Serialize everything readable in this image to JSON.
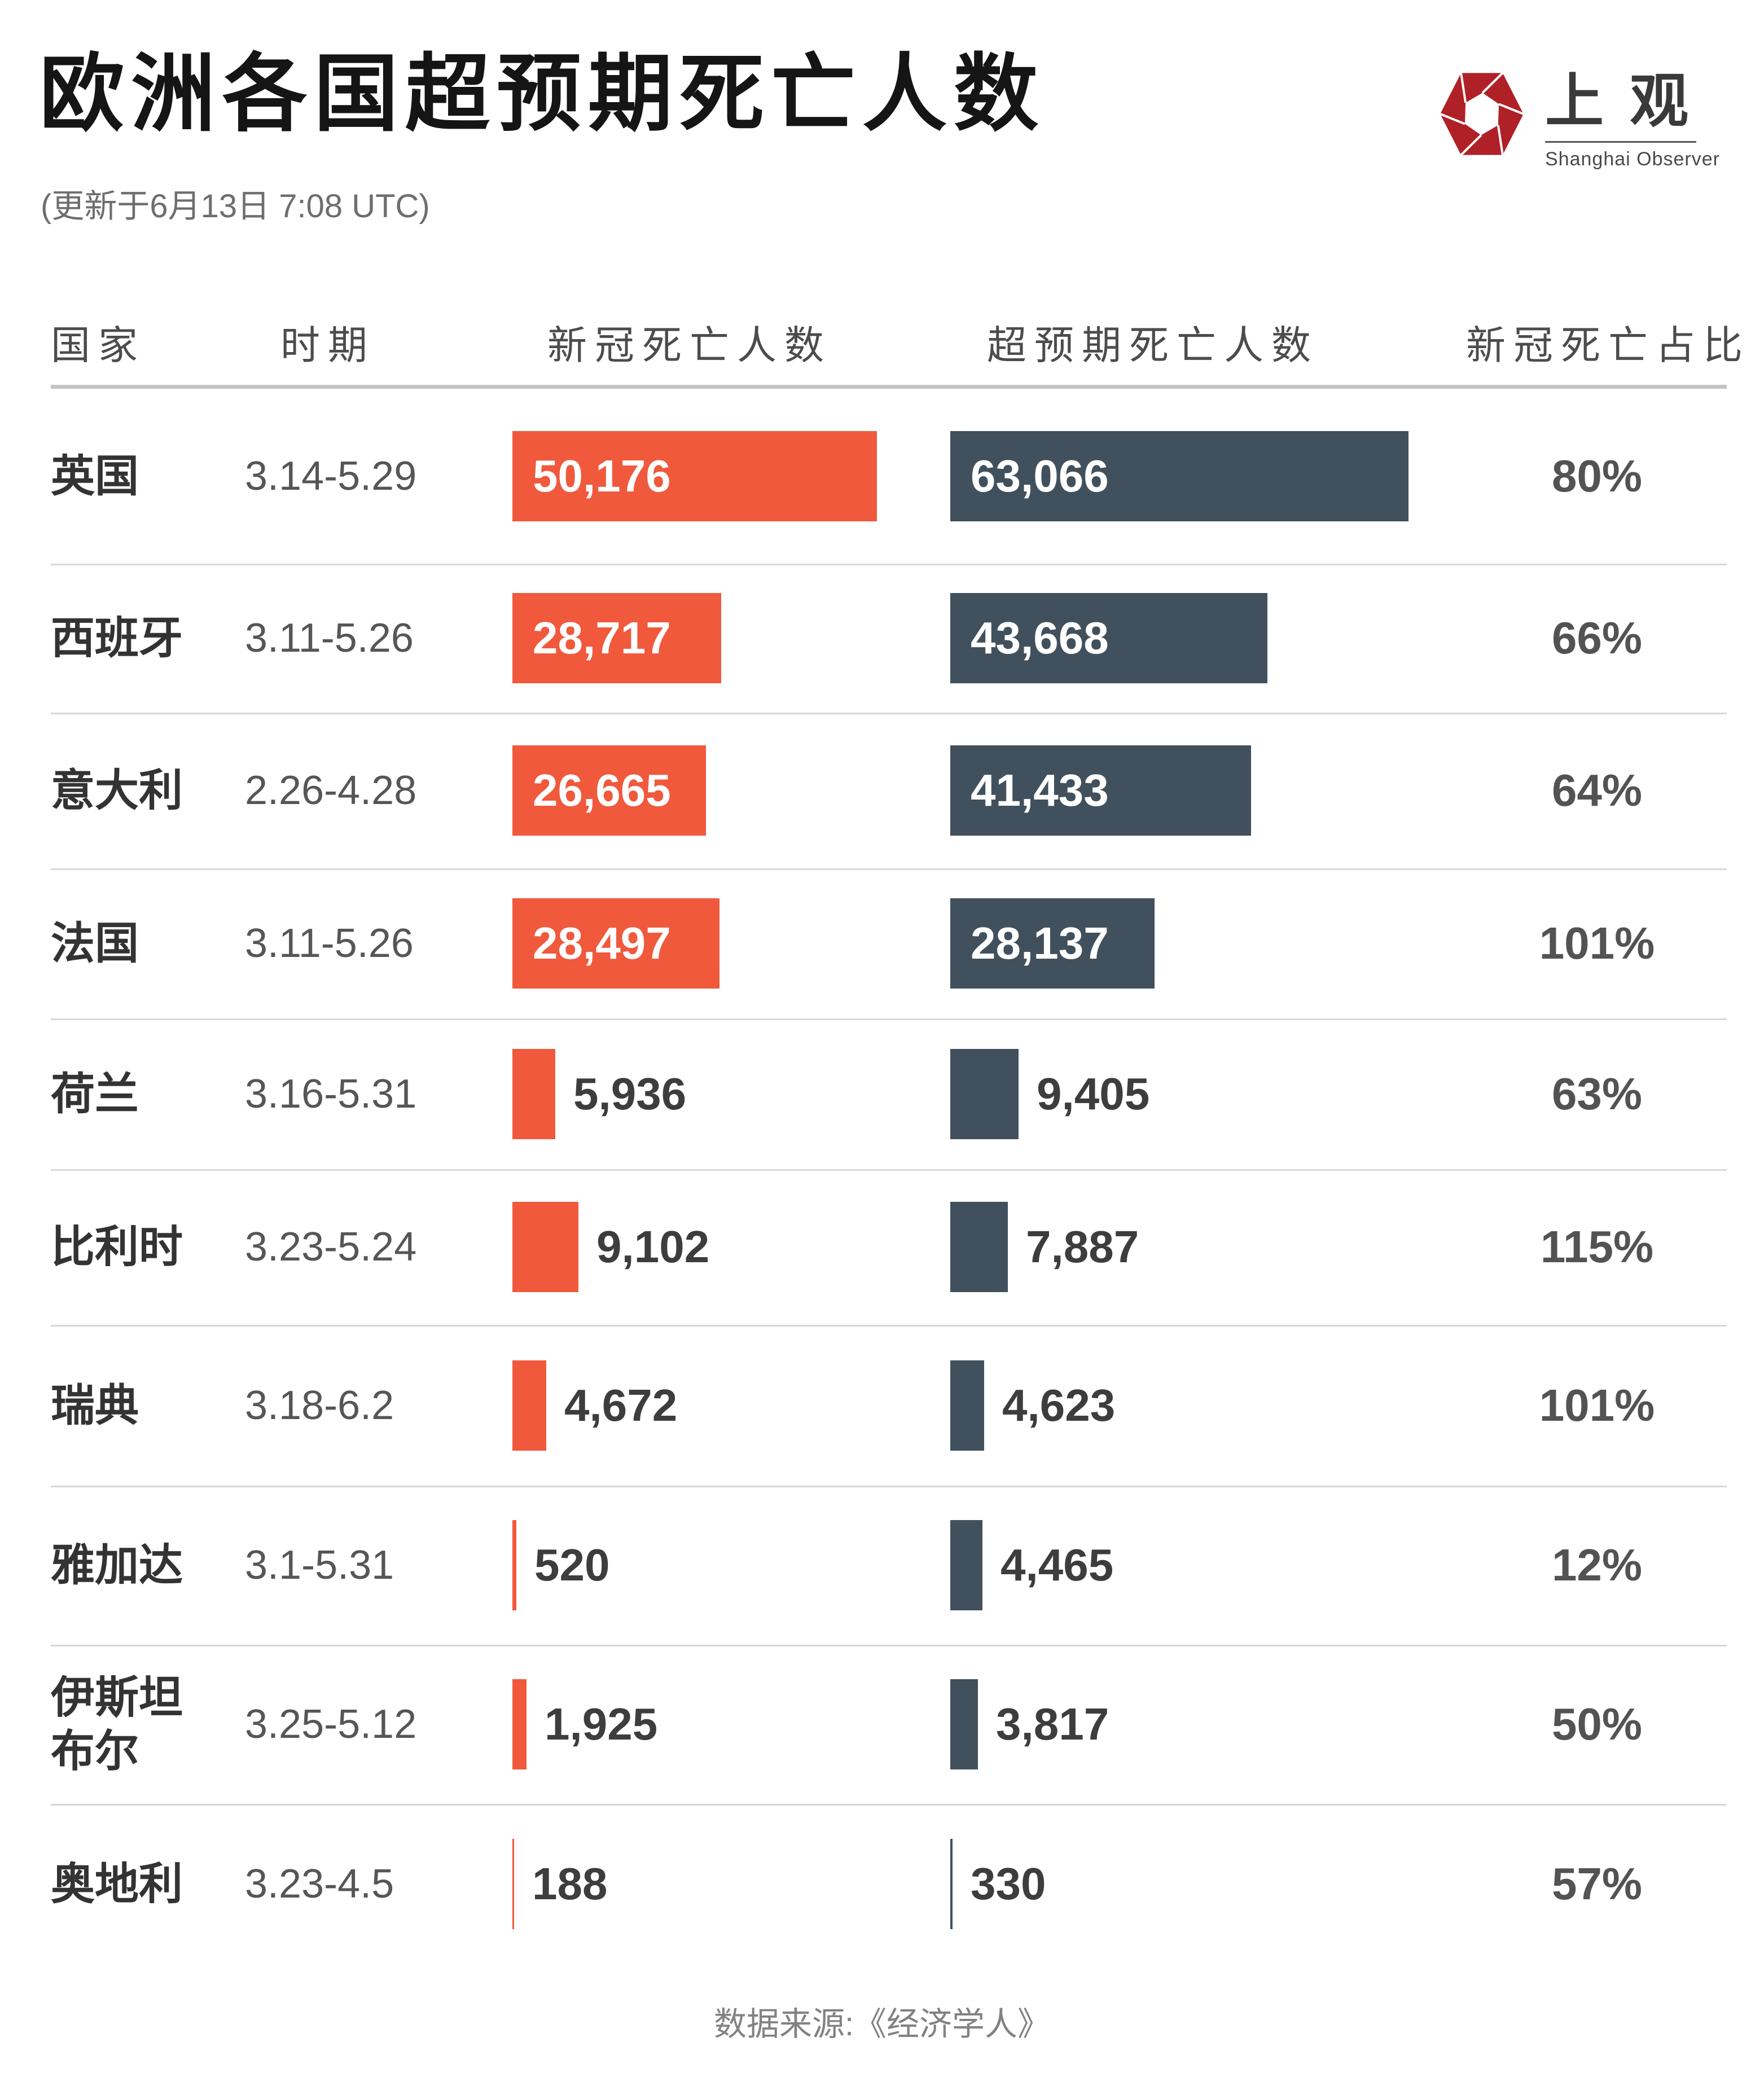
{
  "logo": {
    "cn": "上观",
    "en": "Shanghai Observer",
    "icon": "aperture-hexagon-icon",
    "color": "#B02127"
  },
  "chart_data": {
    "type": "bar",
    "orientation": "horizontal",
    "title": "欧洲各国超预期死亡人数",
    "updated": "(更新于6月13日 7:08 UTC)",
    "source": "数据来源:《经济学人》",
    "columns": [
      "国家",
      "时期",
      "新冠死亡人数",
      "超预期死亡人数",
      "新冠死亡占比"
    ],
    "legend_position": "none",
    "grid": false,
    "max_value": 63066,
    "colors": {
      "covid": "#F0593C",
      "excess": "#41505D"
    },
    "rows": [
      {
        "country": "英国",
        "period": "3.14-5.29",
        "covid": 50176,
        "covid_label": "50,176",
        "excess": 63066,
        "excess_label": "63,066",
        "ratio": "80%"
      },
      {
        "country": "西班牙",
        "period": "3.11-5.26",
        "covid": 28717,
        "covid_label": "28,717",
        "excess": 43668,
        "excess_label": "43,668",
        "ratio": "66%"
      },
      {
        "country": "意大利",
        "period": "2.26-4.28",
        "covid": 26665,
        "covid_label": "26,665",
        "excess": 41433,
        "excess_label": "41,433",
        "ratio": "64%"
      },
      {
        "country": "法国",
        "period": "3.11-5.26",
        "covid": 28497,
        "covid_label": "28,497",
        "excess": 28137,
        "excess_label": "28,137",
        "ratio": "101%"
      },
      {
        "country": "荷兰",
        "period": "3.16-5.31",
        "covid": 5936,
        "covid_label": "5,936",
        "excess": 9405,
        "excess_label": "9,405",
        "ratio": "63%"
      },
      {
        "country": "比利时",
        "period": "3.23-5.24",
        "covid": 9102,
        "covid_label": "9,102",
        "excess": 7887,
        "excess_label": "7,887",
        "ratio": "115%"
      },
      {
        "country": "瑞典",
        "period": "3.18-6.2",
        "covid": 4672,
        "covid_label": "4,672",
        "excess": 4623,
        "excess_label": "4,623",
        "ratio": "101%"
      },
      {
        "country": "雅加达",
        "period": "3.1-5.31",
        "covid": 520,
        "covid_label": "520",
        "excess": 4465,
        "excess_label": "4,465",
        "ratio": "12%"
      },
      {
        "country": "伊斯坦布尔",
        "period": "3.25-5.12",
        "covid": 1925,
        "covid_label": "1,925",
        "excess": 3817,
        "excess_label": "3,817",
        "ratio": "50%"
      },
      {
        "country": "奥地利",
        "period": "3.23-4.5",
        "covid": 188,
        "covid_label": "188",
        "excess": 330,
        "excess_label": "330",
        "ratio": "57%"
      }
    ]
  }
}
